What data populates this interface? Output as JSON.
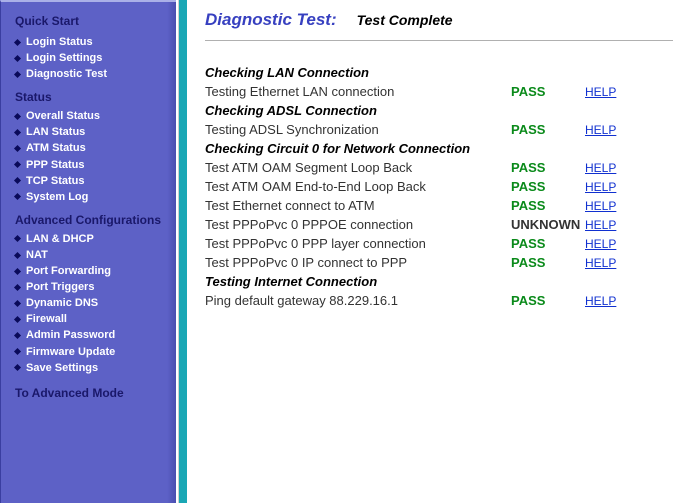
{
  "sidebar": {
    "quick_start": {
      "title": "Quick Start",
      "items": [
        {
          "label": "Login Status"
        },
        {
          "label": "Login Settings"
        },
        {
          "label": "Diagnostic Test"
        }
      ]
    },
    "status": {
      "title": "Status",
      "items": [
        {
          "label": "Overall Status"
        },
        {
          "label": "LAN Status"
        },
        {
          "label": "ATM Status"
        },
        {
          "label": "PPP Status"
        },
        {
          "label": "TCP Status"
        },
        {
          "label": "System Log"
        }
      ]
    },
    "advanced": {
      "title": "Advanced Configurations",
      "items": [
        {
          "label": "LAN & DHCP"
        },
        {
          "label": "NAT"
        },
        {
          "label": "Port Forwarding"
        },
        {
          "label": "Port Triggers"
        },
        {
          "label": "Dynamic DNS"
        },
        {
          "label": "Firewall"
        },
        {
          "label": "Admin Password"
        },
        {
          "label": "Firmware Update"
        },
        {
          "label": "Save Settings"
        }
      ]
    },
    "to_advanced": "To Advanced Mode"
  },
  "main": {
    "title": "Diagnostic Test:",
    "subtitle": "Test Complete",
    "help_label": "HELP",
    "colors": {
      "pass": "#0a8a1a",
      "unknown": "#333333",
      "title": "#3740c0",
      "link": "#1030d0"
    },
    "sections": [
      {
        "header": "Checking LAN Connection",
        "rows": [
          {
            "name": "Testing Ethernet LAN connection",
            "status": "PASS",
            "status_class": "st-pass"
          }
        ]
      },
      {
        "header": "Checking ADSL Connection",
        "rows": [
          {
            "name": "Testing ADSL Synchronization",
            "status": "PASS",
            "status_class": "st-pass"
          }
        ]
      },
      {
        "header": "Checking Circuit 0 for Network Connection",
        "rows": [
          {
            "name": "Test ATM OAM Segment Loop Back",
            "status": "PASS",
            "status_class": "st-pass"
          },
          {
            "name": "Test ATM OAM End-to-End Loop Back",
            "status": "PASS",
            "status_class": "st-pass"
          },
          {
            "name": "Test Ethernet connect to ATM",
            "status": "PASS",
            "status_class": "st-pass"
          },
          {
            "name": "Test PPPoPvc 0 PPPOE connection",
            "status": "UNKNOWN",
            "status_class": "st-unknown"
          },
          {
            "name": "Test PPPoPvc 0 PPP layer connection",
            "status": "PASS",
            "status_class": "st-pass"
          },
          {
            "name": "Test PPPoPvc 0 IP connect to PPP",
            "status": "PASS",
            "status_class": "st-pass"
          }
        ]
      },
      {
        "header": "Testing Internet Connection",
        "rows": [
          {
            "name": "Ping default gateway 88.229.16.1",
            "status": "PASS",
            "status_class": "st-pass"
          }
        ]
      }
    ]
  }
}
